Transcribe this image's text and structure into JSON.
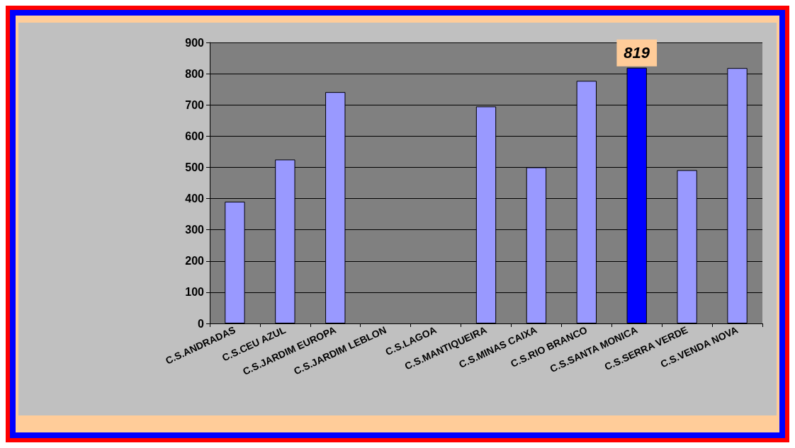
{
  "chart_data": {
    "type": "bar",
    "categories": [
      "C.S.ANDRADAS",
      "C.S.CEU AZUL",
      "C.S.JARDIM EUROPA",
      "C.S.JARDIM LEBLON",
      "C.S.LAGOA",
      "C.S.MANTIQUEIRA",
      "C.S.MINAS CAIXA",
      "C.S.RIO BRANCO",
      "C.S.SANTA MONICA",
      "C.S.SERRA VERDE",
      "C.S.VENDA NOVA"
    ],
    "values": [
      390,
      525,
      741,
      0,
      0,
      695,
      500,
      777,
      819,
      491,
      818
    ],
    "colors": [
      "#9999ff",
      "#9999ff",
      "#9999ff",
      "#9999ff",
      "#9999ff",
      "#9999ff",
      "#9999ff",
      "#9999ff",
      "#0000ff",
      "#9999ff",
      "#9999ff"
    ],
    "value_labels": [
      null,
      null,
      null,
      null,
      null,
      null,
      null,
      null,
      "819",
      null,
      null
    ],
    "ylim": [
      0,
      900
    ],
    "yticks": [
      0,
      100,
      200,
      300,
      400,
      500,
      600,
      700,
      800,
      900
    ],
    "grid": "y"
  }
}
